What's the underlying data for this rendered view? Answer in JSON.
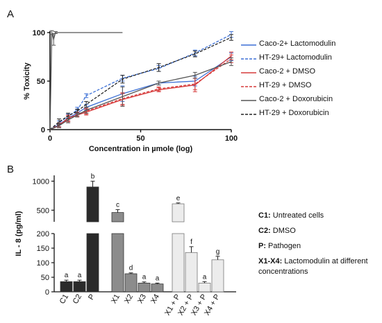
{
  "chart_data": [
    {
      "panel": "A",
      "type": "line",
      "xlabel": "Concentration in µmole (log)",
      "ylabel": "% Toxicity",
      "xlim": [
        0,
        100
      ],
      "ylim": [
        0,
        100
      ],
      "x_ticks": [
        "0",
        "50",
        "100"
      ],
      "y_ticks": [
        "0",
        "50",
        "100"
      ],
      "legend_position": "right",
      "series": [
        {
          "name": "Caco-2+ Lactomodulin",
          "color": "#3b6fd6",
          "dash": "solid",
          "x": [
            0,
            5,
            10,
            15,
            20,
            40,
            60,
            80,
            100
          ],
          "y": [
            0,
            5,
            12,
            17,
            23,
            37,
            48,
            50,
            75
          ],
          "err": [
            0,
            2,
            3,
            3,
            3,
            8,
            2,
            5,
            4
          ]
        },
        {
          "name": "HT-29+ Lactomodulin",
          "color": "#3b6fd6",
          "dash": "dash",
          "x": [
            0,
            5,
            10,
            15,
            20,
            40,
            60,
            80,
            100
          ],
          "y": [
            0,
            7,
            14,
            20,
            35,
            53,
            63,
            79,
            98
          ],
          "err": [
            0,
            2,
            2,
            3,
            2,
            3,
            3,
            3,
            3
          ]
        },
        {
          "name": "Caco-2 + DMSO",
          "color": "#d63a3a",
          "dash": "solid",
          "x": [
            0,
            5,
            10,
            15,
            20,
            40,
            60,
            80,
            100
          ],
          "y": [
            0,
            4,
            12,
            15,
            18,
            31,
            41,
            46,
            76
          ],
          "err": [
            0,
            2,
            3,
            2,
            3,
            6,
            2,
            7,
            4
          ]
        },
        {
          "name": "HT-29 + DMSO",
          "color": "#d63a3a",
          "dash": "dash",
          "x": [
            0,
            5,
            10,
            15,
            20,
            40,
            60,
            80,
            100
          ],
          "y": [
            0,
            5,
            11,
            16,
            19,
            32,
            42,
            47,
            73
          ],
          "err": [
            0,
            2,
            3,
            2,
            3,
            6,
            2,
            6,
            4
          ]
        },
        {
          "name": "Caco-2 + Doxorubicin",
          "color": "#555555",
          "dash": "solid",
          "x": [
            0,
            1,
            2,
            3,
            5,
            10,
            15,
            20,
            40
          ],
          "y": [
            0,
            100,
            93,
            100,
            100,
            100,
            100,
            100,
            100
          ],
          "err": [
            0,
            2,
            6,
            1,
            0,
            0,
            0,
            0,
            0
          ]
        },
        {
          "name": "HT-29 + Doxorubicin",
          "color": "#222222",
          "dash": "dash",
          "x": [
            0,
            5,
            10,
            15,
            20,
            40,
            60,
            80,
            100
          ],
          "y": [
            0,
            8,
            14,
            19,
            26,
            52,
            64,
            78,
            95
          ],
          "err": [
            0,
            3,
            3,
            2,
            3,
            4,
            4,
            3,
            3
          ]
        },
        {
          "name": "",
          "color": "#555555",
          "dash": "solid",
          "x": [
            0,
            5,
            10,
            15,
            20,
            40,
            60,
            80,
            100
          ],
          "y": [
            0,
            4,
            10,
            15,
            20,
            34,
            48,
            56,
            70
          ],
          "err": [
            0,
            2,
            3,
            2,
            3,
            10,
            2,
            3,
            4
          ]
        }
      ]
    },
    {
      "panel": "B",
      "type": "bar",
      "ylabel": "IL - 8 (pg/ml)",
      "categories": [
        "C1",
        "C2",
        "P",
        "X1",
        "X2",
        "X3",
        "X4",
        "X1 + P",
        "X2 + P",
        "X3 + P",
        "X4 + P"
      ],
      "values": [
        35,
        35,
        900,
        460,
        62,
        30,
        27,
        610,
        135,
        30,
        110
      ],
      "errors": [
        5,
        5,
        100,
        50,
        3,
        4,
        3,
        15,
        20,
        5,
        12
      ],
      "letters": [
        "a",
        "a",
        "b",
        "c",
        "d",
        "a",
        "a",
        "e",
        "f",
        "a",
        "g"
      ],
      "colors": [
        "#2a2a2a",
        "#2a2a2a",
        "#2a2a2a",
        "#8c8c8c",
        "#8c8c8c",
        "#8c8c8c",
        "#8c8c8c",
        "#ececec",
        "#ececec",
        "#ececec",
        "#ececec"
      ],
      "y_ticks_lower": [
        "0",
        "50",
        "100",
        "150",
        "200"
      ],
      "y_ticks_upper": [
        "500",
        "1000"
      ],
      "ylim_lower": [
        0,
        200
      ],
      "ylim_upper": [
        300,
        1100
      ],
      "axis_break": true
    }
  ],
  "panel_labels": {
    "a": "A",
    "b": "B"
  },
  "key": [
    {
      "term": "C1:",
      "desc": " Untreated cells"
    },
    {
      "term": "C2:",
      "desc": " DMSO"
    },
    {
      "term": "P:",
      "desc": " Pathogen"
    },
    {
      "term": "X1-X4:",
      "desc": " Lactomodulin at different concentrations"
    }
  ]
}
